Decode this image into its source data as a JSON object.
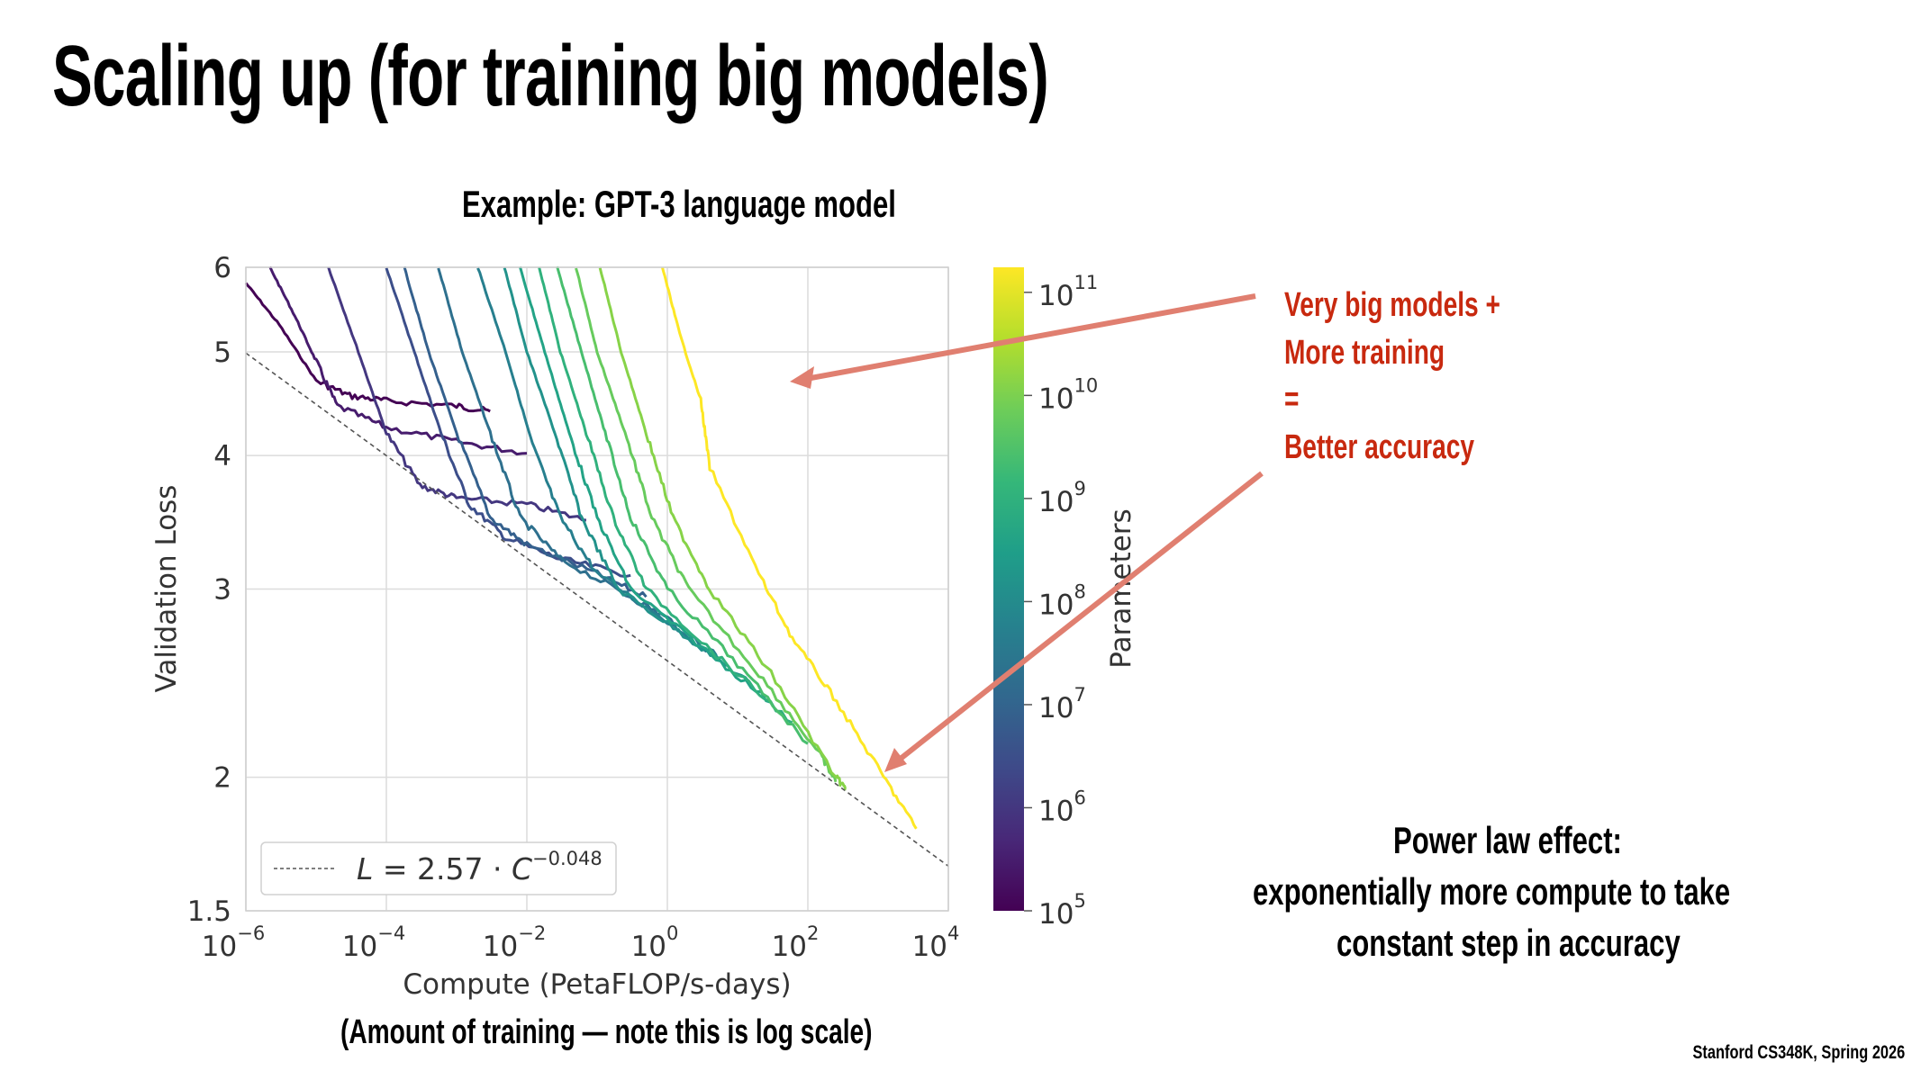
{
  "slide": {
    "title": "Scaling up (for training big models)",
    "subtitle": "Example: GPT-3 language model",
    "annotation_lines": [
      "Very big models +",
      "More training",
      "=",
      "Better accuracy"
    ],
    "power_law_lines": [
      "Power law effect:",
      "exponentially more compute to take",
      "constant step in accuracy"
    ],
    "caption": "(Amount of training — note this is log scale)",
    "footer": "Stanford CS348K, Spring 2026",
    "colors": {
      "annotation_text": "#c8290f",
      "arrow": "#e07f70",
      "grid": "#dcdcdc"
    }
  },
  "chart_data": {
    "type": "line",
    "xlabel": "Compute (PetaFLOP/s-days)",
    "ylabel": "Validation Loss",
    "xscale": "log",
    "yscale": "log",
    "xlim": [
      1e-06,
      10000.0
    ],
    "ylim": [
      1.5,
      6
    ],
    "grid": true,
    "xticks": [
      {
        "base": "10",
        "exp": "−6",
        "value": 1e-06
      },
      {
        "base": "10",
        "exp": "−4",
        "value": 0.0001
      },
      {
        "base": "10",
        "exp": "−2",
        "value": 0.01
      },
      {
        "base": "10",
        "exp": "0",
        "value": 1
      },
      {
        "base": "10",
        "exp": "2",
        "value": 100.0
      },
      {
        "base": "10",
        "exp": "4",
        "value": 10000.0
      }
    ],
    "yticks": [
      {
        "label": "1.5",
        "value": 1.5
      },
      {
        "label": "2",
        "value": 2
      },
      {
        "label": "3",
        "value": 3
      },
      {
        "label": "4",
        "value": 4
      },
      {
        "label": "5",
        "value": 5
      },
      {
        "label": "6",
        "value": 6
      }
    ],
    "fit": {
      "label_L": "L",
      "label_eq": " = 2.57 · ",
      "label_C": "C",
      "label_exp": "−0.048",
      "coef": 2.57,
      "exponent": -0.048,
      "style": "dashed",
      "color": "#555555"
    },
    "legend_placement": "lower-left",
    "colorbar": {
      "label": "Parameters",
      "colormap": "viridis",
      "scale": "log",
      "range": [
        100000.0,
        175000000000.0
      ],
      "ticks": [
        {
          "base": "10",
          "exp": "5",
          "value": 5
        },
        {
          "base": "10",
          "exp": "6",
          "value": 6
        },
        {
          "base": "10",
          "exp": "7",
          "value": 7
        },
        {
          "base": "10",
          "exp": "8",
          "value": 8
        },
        {
          "base": "10",
          "exp": "9",
          "value": 9
        },
        {
          "base": "10",
          "exp": "10",
          "value": 10
        },
        {
          "base": "10",
          "exp": "11",
          "value": 11
        }
      ]
    },
    "series": [
      {
        "params": 100000.0,
        "points": [
          [
            1e-06,
            5.8
          ],
          [
            3e-06,
            5.3
          ],
          [
            1e-05,
            4.7
          ],
          [
            3e-05,
            4.55
          ],
          [
            0.0001,
            4.5
          ],
          [
            0.001,
            4.45
          ],
          [
            0.003,
            4.4
          ]
        ]
      },
      {
        "params": 300000.0,
        "points": [
          [
            2.2e-06,
            6
          ],
          [
            5e-06,
            5.4
          ],
          [
            1e-05,
            4.9
          ],
          [
            2e-05,
            4.45
          ],
          [
            0.0001,
            4.25
          ],
          [
            0.001,
            4.12
          ],
          [
            0.01,
            4.02
          ]
        ]
      },
      {
        "params": 1000000.0,
        "points": [
          [
            1.5e-05,
            6
          ],
          [
            4e-05,
            5
          ],
          [
            0.0001,
            4.2
          ],
          [
            0.0003,
            3.75
          ],
          [
            0.001,
            3.65
          ],
          [
            0.01,
            3.6
          ],
          [
            0.07,
            3.48
          ]
        ]
      },
      {
        "params": 3000000.0,
        "points": [
          [
            0.0001,
            6
          ],
          [
            0.00025,
            5
          ],
          [
            0.0006,
            4.2
          ],
          [
            0.0015,
            3.6
          ],
          [
            0.005,
            3.35
          ],
          [
            0.03,
            3.2
          ],
          [
            0.3,
            3.09
          ]
        ]
      },
      {
        "params": 8000000.0,
        "points": [
          [
            0.00018,
            6
          ],
          [
            0.0004,
            5
          ],
          [
            0.001,
            4.2
          ],
          [
            0.003,
            3.5
          ],
          [
            0.01,
            3.3
          ],
          [
            0.1,
            3.1
          ],
          [
            0.5,
            2.95
          ]
        ]
      },
      {
        "params": 20000000.0,
        "points": [
          [
            0.00055,
            6
          ],
          [
            0.0012,
            5
          ],
          [
            0.003,
            4.2
          ],
          [
            0.008,
            3.5
          ],
          [
            0.03,
            3.2
          ],
          [
            0.3,
            2.95
          ],
          [
            1.4,
            2.78
          ]
        ]
      },
      {
        "params": 50000000.0,
        "points": [
          [
            0.002,
            6
          ],
          [
            0.005,
            5
          ],
          [
            0.012,
            4.1
          ],
          [
            0.03,
            3.5
          ],
          [
            0.1,
            3.1
          ],
          [
            1,
            2.8
          ],
          [
            5,
            2.6
          ]
        ]
      },
      {
        "params": 150000000.0,
        "points": [
          [
            0.0048,
            6
          ],
          [
            0.01,
            5
          ],
          [
            0.025,
            4.2
          ],
          [
            0.06,
            3.5
          ],
          [
            0.2,
            3.0
          ],
          [
            2,
            2.7
          ],
          [
            15,
            2.45
          ]
        ]
      },
      {
        "params": 400000000.0,
        "points": [
          [
            0.008,
            6
          ],
          [
            0.018,
            5
          ],
          [
            0.04,
            4.2
          ],
          [
            0.1,
            3.5
          ],
          [
            0.3,
            3.0
          ],
          [
            3,
            2.65
          ],
          [
            30,
            2.35
          ]
        ]
      },
      {
        "params": 1000000000.0,
        "points": [
          [
            0.015,
            6
          ],
          [
            0.03,
            5
          ],
          [
            0.07,
            4.2
          ],
          [
            0.17,
            3.5
          ],
          [
            0.5,
            3.0
          ],
          [
            5,
            2.6
          ],
          [
            60,
            2.25
          ]
        ]
      },
      {
        "params": 2500000000.0,
        "points": [
          [
            0.027,
            6
          ],
          [
            0.06,
            5
          ],
          [
            0.13,
            4.2
          ],
          [
            0.3,
            3.5
          ],
          [
            1,
            3.0
          ],
          [
            10,
            2.55
          ],
          [
            100,
            2.15
          ]
        ]
      },
      {
        "params": 6000000000.0,
        "points": [
          [
            0.05,
            6
          ],
          [
            0.1,
            5
          ],
          [
            0.25,
            4.2
          ],
          [
            0.6,
            3.5
          ],
          [
            2,
            3.0
          ],
          [
            20,
            2.5
          ],
          [
            150,
            2.1
          ],
          [
            250,
            1.98
          ]
        ]
      },
      {
        "params": 13000000000.0,
        "points": [
          [
            0.11,
            6
          ],
          [
            0.22,
            5
          ],
          [
            0.5,
            4.2
          ],
          [
            1.2,
            3.5
          ],
          [
            4,
            3.0
          ],
          [
            30,
            2.5
          ],
          [
            250,
            2.0
          ],
          [
            350,
            1.95
          ]
        ]
      },
      {
        "params": 175000000000.0,
        "points": [
          [
            0.85,
            6
          ],
          [
            1.5,
            5.2
          ],
          [
            3,
            4.5
          ],
          [
            4,
            3.9
          ],
          [
            20,
            3.1
          ],
          [
            60,
            2.7
          ],
          [
            230,
            2.38
          ],
          [
            1100,
            2.02
          ],
          [
            3500,
            1.79
          ]
        ]
      }
    ]
  }
}
